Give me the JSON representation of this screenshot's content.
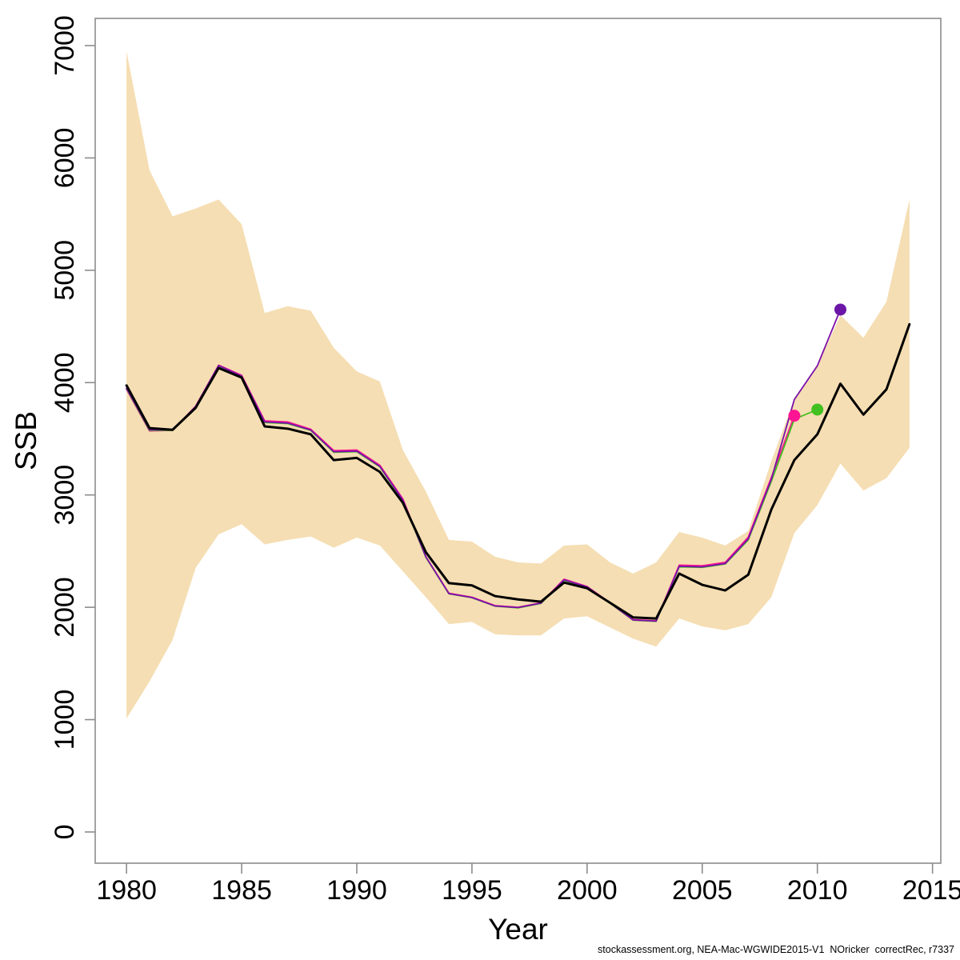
{
  "footer": {
    "text": "stockassessment.org, NEA-Mac-WGWIDE2015-V1  NOricker  correctRec, r7337"
  },
  "chart_data": {
    "type": "line",
    "title": "",
    "xlabel": "Year",
    "ylabel": "SSB",
    "grid": false,
    "legend_position": "none",
    "xlim": [
      1978.64,
      2015.36
    ],
    "ylim": [
      -278,
      7242
    ],
    "xticks": [
      1980,
      1985,
      1990,
      1995,
      2000,
      2005,
      2010,
      2015
    ],
    "yticks": [
      0,
      1000,
      2000,
      3000,
      4000,
      5000,
      6000,
      7000
    ],
    "x": [
      1980,
      1981,
      1982,
      1983,
      1984,
      1985,
      1986,
      1987,
      1988,
      1989,
      1990,
      1991,
      1992,
      1993,
      1994,
      1995,
      1996,
      1997,
      1998,
      1999,
      2000,
      2001,
      2002,
      2003,
      2004,
      2005,
      2006,
      2007,
      2008,
      2009,
      2010,
      2011,
      2012,
      2013,
      2014
    ],
    "band": {
      "name": "confidence-band",
      "color": "#F5DEB3",
      "upper": [
        6950,
        5890,
        5480,
        5550,
        5630,
        5410,
        4620,
        4680,
        4640,
        4310,
        4100,
        4010,
        3400,
        3030,
        2600,
        2585,
        2450,
        2400,
        2390,
        2550,
        2560,
        2400,
        2300,
        2400,
        2670,
        2620,
        2550,
        2680,
        3300,
        3850,
        4150,
        4600,
        4400,
        4720,
        5630
      ],
      "lower": [
        1010,
        1340,
        1710,
        2350,
        2650,
        2740,
        2560,
        2600,
        2630,
        2530,
        2620,
        2550,
        2320,
        2090,
        1850,
        1870,
        1760,
        1750,
        1750,
        1900,
        1920,
        1820,
        1720,
        1650,
        1900,
        1830,
        1795,
        1850,
        2090,
        2660,
        2910,
        3280,
        3040,
        3150,
        3420
      ]
    },
    "series": [
      {
        "name": "retro-run-2009",
        "color": "#FF1493",
        "width": 1.8,
        "values": [
          3940,
          3570,
          3575,
          3790,
          4155,
          4065,
          3660,
          3650,
          3585,
          3395,
          3400,
          3265,
          2965,
          2450,
          2125,
          2090,
          2015,
          2000,
          2040,
          2250,
          2185,
          2040,
          1890,
          1880,
          2375,
          2370,
          2400,
          2625,
          3155,
          3705
        ]
      },
      {
        "name": "retro-run-2010",
        "color": "#42C020",
        "width": 1.8,
        "values": [
          3945,
          3575,
          3575,
          3785,
          4150,
          4055,
          3645,
          3635,
          3575,
          3380,
          3385,
          3250,
          2950,
          2445,
          2120,
          2085,
          2010,
          1995,
          2035,
          2240,
          2180,
          2035,
          1885,
          1875,
          2360,
          2355,
          2385,
          2600,
          3120,
          3675,
          3760
        ]
      },
      {
        "name": "retro-run-2011",
        "color": "#7C10A8",
        "width": 1.8,
        "values": [
          3950,
          3580,
          3578,
          3787,
          4152,
          4058,
          3650,
          3640,
          3578,
          3385,
          3390,
          3255,
          2955,
          2448,
          2122,
          2087,
          2012,
          1998,
          2037,
          2245,
          2182,
          2037,
          1887,
          1877,
          2365,
          2360,
          2390,
          2610,
          3140,
          3850,
          4150,
          4650
        ]
      },
      {
        "name": "ssb-estimate",
        "color": "#000000",
        "width": 3,
        "values": [
          3975,
          3595,
          3580,
          3775,
          4130,
          4045,
          3610,
          3590,
          3540,
          3310,
          3330,
          3205,
          2930,
          2490,
          2215,
          2195,
          2100,
          2070,
          2050,
          2220,
          2170,
          2040,
          1910,
          1900,
          2300,
          2200,
          2150,
          2290,
          2870,
          3310,
          3540,
          3990,
          3715,
          3940,
          4520
        ]
      }
    ],
    "points": [
      {
        "name": "retro-2009-endpoint",
        "x": 2009,
        "y": 3705,
        "color": "#FF1493",
        "r": 7.5
      },
      {
        "name": "retro-2010-endpoint",
        "x": 2010,
        "y": 3760,
        "color": "#42C020",
        "r": 7.5
      },
      {
        "name": "retro-2011-endpoint",
        "x": 2011,
        "y": 4650,
        "color": "#6C16A8",
        "r": 7.5
      }
    ],
    "frame_color": "#8c8c8c",
    "label_color": "#000000"
  }
}
